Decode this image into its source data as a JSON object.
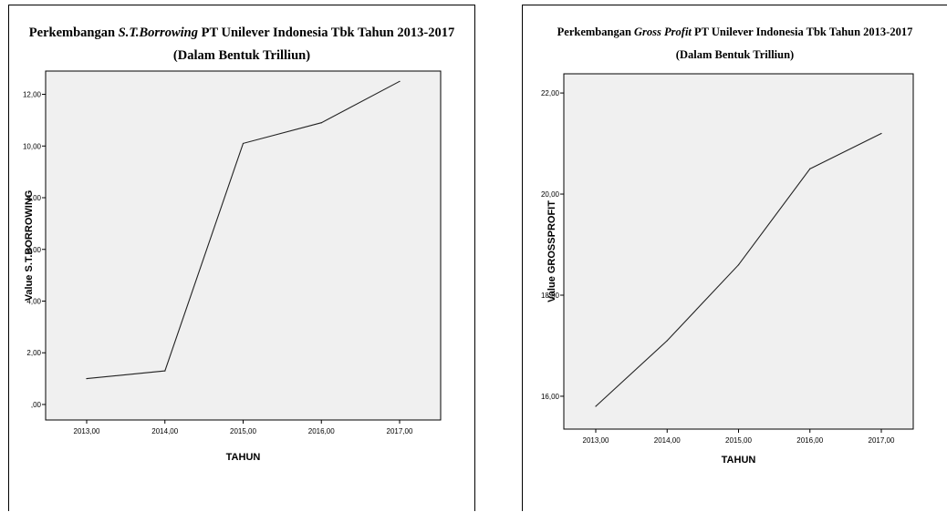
{
  "chart_data": [
    {
      "type": "line",
      "title_prefix": "Perkembangan ",
      "title_italic": "S.T.Borrowing",
      "title_suffix": " PT Unilever Indonesia Tbk Tahun 2013-2017",
      "subtitle": "(Dalam Bentuk Trilliun)",
      "xlabel": "TAHUN",
      "ylabel": "Value S.T.BORROWING",
      "x": [
        2013,
        2014,
        2015,
        2016,
        2017
      ],
      "x_tick_labels": [
        "2013,00",
        "2014,00",
        "2015,00",
        "2016,00",
        "2017,00"
      ],
      "y_ticks": [
        0,
        2,
        4,
        6,
        8,
        10,
        12
      ],
      "y_tick_labels": [
        ",00",
        "2,00",
        "4,00",
        "6,00",
        "8,00",
        "10,00",
        "12,00"
      ],
      "ylim": [
        -0.6,
        12.9
      ],
      "series": [
        {
          "values": [
            1.0,
            1.3,
            10.1,
            10.9,
            12.5
          ]
        }
      ],
      "grid": false
    },
    {
      "type": "line",
      "title_prefix": "Perkembangan ",
      "title_italic": "Gross Profit",
      "title_suffix": " PT Unilever Indonesia Tbk Tahun 2013-2017",
      "subtitle": "(Dalam Bentuk Trilliun)",
      "xlabel": "TAHUN",
      "ylabel": "Value GROSSPROFIT",
      "x": [
        2013,
        2014,
        2015,
        2016,
        2017
      ],
      "x_tick_labels": [
        "2013,00",
        "2014,00",
        "2015,00",
        "2016,00",
        "2017,00"
      ],
      "y_ticks": [
        16,
        18,
        20,
        22
      ],
      "y_tick_labels": [
        "16,00",
        "18,00",
        "20,00",
        "22,00"
      ],
      "ylim": [
        15.35,
        22.38
      ],
      "series": [
        {
          "values": [
            15.8,
            17.1,
            18.6,
            20.5,
            21.2
          ]
        }
      ],
      "grid": false
    }
  ]
}
